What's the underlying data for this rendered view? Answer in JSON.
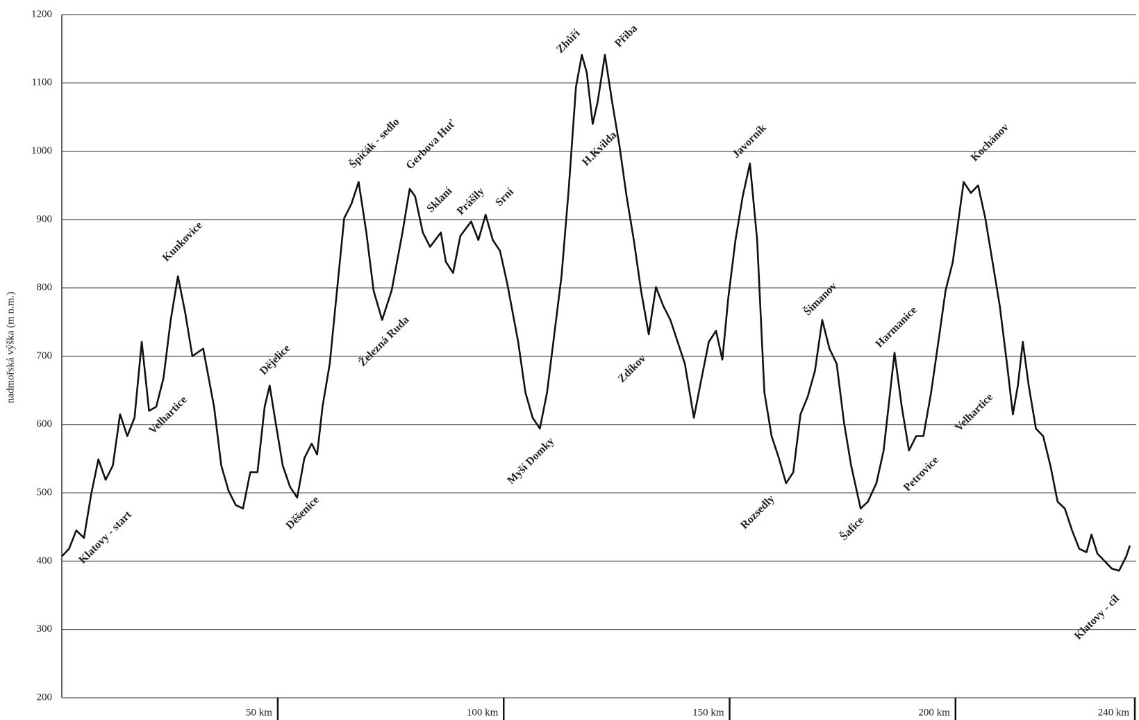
{
  "chart_data": {
    "type": "line",
    "ylabel": "nadmořská výška (m n.m.)",
    "xlim": [
      2.2,
      240
    ],
    "ylim": [
      200,
      1200
    ],
    "yticks": [
      200,
      300,
      400,
      500,
      600,
      700,
      800,
      900,
      1000,
      1100,
      1200
    ],
    "xticks": [
      {
        "value": 50,
        "label": "50 km"
      },
      {
        "value": 100,
        "label": "100 km"
      },
      {
        "value": 150,
        "label": "150 km"
      },
      {
        "value": 200,
        "label": "200 km"
      },
      {
        "value": 240,
        "label": "240 km"
      }
    ],
    "grid": true,
    "series": [
      {
        "color": "#111111",
        "x": [
          2.2,
          3.8,
          5.4,
          7.1,
          8.7,
          10.3,
          11.9,
          13.5,
          15.1,
          16.7,
          18.3,
          19.9,
          21.5,
          23.1,
          24.7,
          26.3,
          27.9,
          29.5,
          31.1,
          33.5,
          35.9,
          37.5,
          39.1,
          40.7,
          42.3,
          43.9,
          45.5,
          47.1,
          48.2,
          49.5,
          51.1,
          52.7,
          54.3,
          55.9,
          57.5,
          58.7,
          59.9,
          61.5,
          63.1,
          64.7,
          66.3,
          67.9,
          69.6,
          71.2,
          73.1,
          75.2,
          77.6,
          79.2,
          80.4,
          82.1,
          83.7,
          86.1,
          87.2,
          88.8,
          90.4,
          92.8,
          94.4,
          96.0,
          97.6,
          99.2,
          100.8,
          103.2,
          104.8,
          106.4,
          108.0,
          109.6,
          111.2,
          112.8,
          114.4,
          116.0,
          117.3,
          118.4,
          119.7,
          120.8,
          122.4,
          124.0,
          125.6,
          127.2,
          128.8,
          130.4,
          132.1,
          133.7,
          135.3,
          136.9,
          138.5,
          140.1,
          142.1,
          143.8,
          145.4,
          147.0,
          148.4,
          149.7,
          151.3,
          152.9,
          154.5,
          156.1,
          157.7,
          159.3,
          160.9,
          162.5,
          164.1,
          165.7,
          167.3,
          168.9,
          170.5,
          172.1,
          173.7,
          175.3,
          176.9,
          179.0,
          180.6,
          182.5,
          184.1,
          186.5,
          188.1,
          189.7,
          191.3,
          192.9,
          194.6,
          196.2,
          197.8,
          199.4,
          201.8,
          203.4,
          205.0,
          206.6,
          208.2,
          209.8,
          211.4,
          212.7,
          213.8,
          214.9,
          216.2,
          217.8,
          219.4,
          221.0,
          222.6,
          224.2,
          225.8,
          227.4,
          229.0,
          230.1,
          231.4,
          233.0,
          234.6,
          236.2,
          237.8,
          238.6
        ],
        "values": [
          407,
          418,
          445,
          434,
          498,
          549,
          519,
          540,
          615,
          583,
          610,
          721,
          620,
          626,
          668,
          753,
          817,
          764,
          700,
          711,
          626,
          540,
          503,
          482,
          477,
          530,
          530,
          626,
          657,
          604,
          540,
          509,
          493,
          551,
          572,
          556,
          626,
          689,
          796,
          902,
          923,
          955,
          881,
          796,
          753,
          796,
          881,
          945,
          934,
          881,
          860,
          881,
          838,
          822,
          876,
          897,
          870,
          907,
          870,
          854,
          806,
          721,
          647,
          610,
          594,
          647,
          732,
          817,
          945,
          1094,
          1141,
          1115,
          1040,
          1072,
          1141,
          1072,
          1009,
          934,
          870,
          796,
          732,
          801,
          774,
          753,
          721,
          689,
          610,
          668,
          721,
          737,
          695,
          785,
          870,
          934,
          982,
          870,
          647,
          583,
          551,
          514,
          530,
          615,
          641,
          679,
          753,
          711,
          689,
          604,
          540,
          477,
          487,
          514,
          562,
          705,
          626,
          562,
          583,
          583,
          647,
          721,
          796,
          838,
          955,
          939,
          950,
          902,
          838,
          774,
          689,
          615,
          657,
          721,
          657,
          594,
          583,
          540,
          487,
          477,
          445,
          418,
          413,
          439,
          411,
          400,
          389,
          386,
          407,
          423
        ]
      }
    ],
    "annotations": [
      {
        "text": "Klatovy - start",
        "x": 11.9,
        "y": 434
      },
      {
        "text": "Kunkovice",
        "x": 29.0,
        "y": 867
      },
      {
        "text": "Velhartice",
        "x": 25.8,
        "y": 613
      },
      {
        "text": "Dějelice",
        "x": 49.5,
        "y": 694
      },
      {
        "text": "Děšenice",
        "x": 55.6,
        "y": 470
      },
      {
        "text": "Špičák - sedlo",
        "x": 71.5,
        "y": 1011
      },
      {
        "text": "Gerbova Huť",
        "x": 84.0,
        "y": 1009
      },
      {
        "text": "Železná Ruda",
        "x": 73.6,
        "y": 721
      },
      {
        "text": "Sklaní",
        "x": 85.9,
        "y": 928
      },
      {
        "text": "Prášily",
        "x": 92.8,
        "y": 926
      },
      {
        "text": "Srní",
        "x": 100.3,
        "y": 932
      },
      {
        "text": "Zhůří",
        "x": 114.4,
        "y": 1160
      },
      {
        "text": "Přiba",
        "x": 127.2,
        "y": 1168
      },
      {
        "text": "H.Kvilda",
        "x": 121.3,
        "y": 1003
      },
      {
        "text": "Myší Domky",
        "x": 106.1,
        "y": 546
      },
      {
        "text": "Zdíkov",
        "x": 128.5,
        "y": 681
      },
      {
        "text": "Javorník",
        "x": 154.5,
        "y": 1014
      },
      {
        "text": "Rozsedly",
        "x": 156.3,
        "y": 471
      },
      {
        "text": "Šimanov",
        "x": 170.2,
        "y": 783
      },
      {
        "text": "Šafice",
        "x": 177.2,
        "y": 447
      },
      {
        "text": "Harmanice",
        "x": 187.0,
        "y": 742
      },
      {
        "text": "Petrovice",
        "x": 192.5,
        "y": 527
      },
      {
        "text": "Velhartice",
        "x": 204.2,
        "y": 617
      },
      {
        "text": "Kochánov",
        "x": 207.7,
        "y": 1012
      },
      {
        "text": "Klatovy - cíl",
        "x": 231.4,
        "y": 317
      }
    ]
  }
}
